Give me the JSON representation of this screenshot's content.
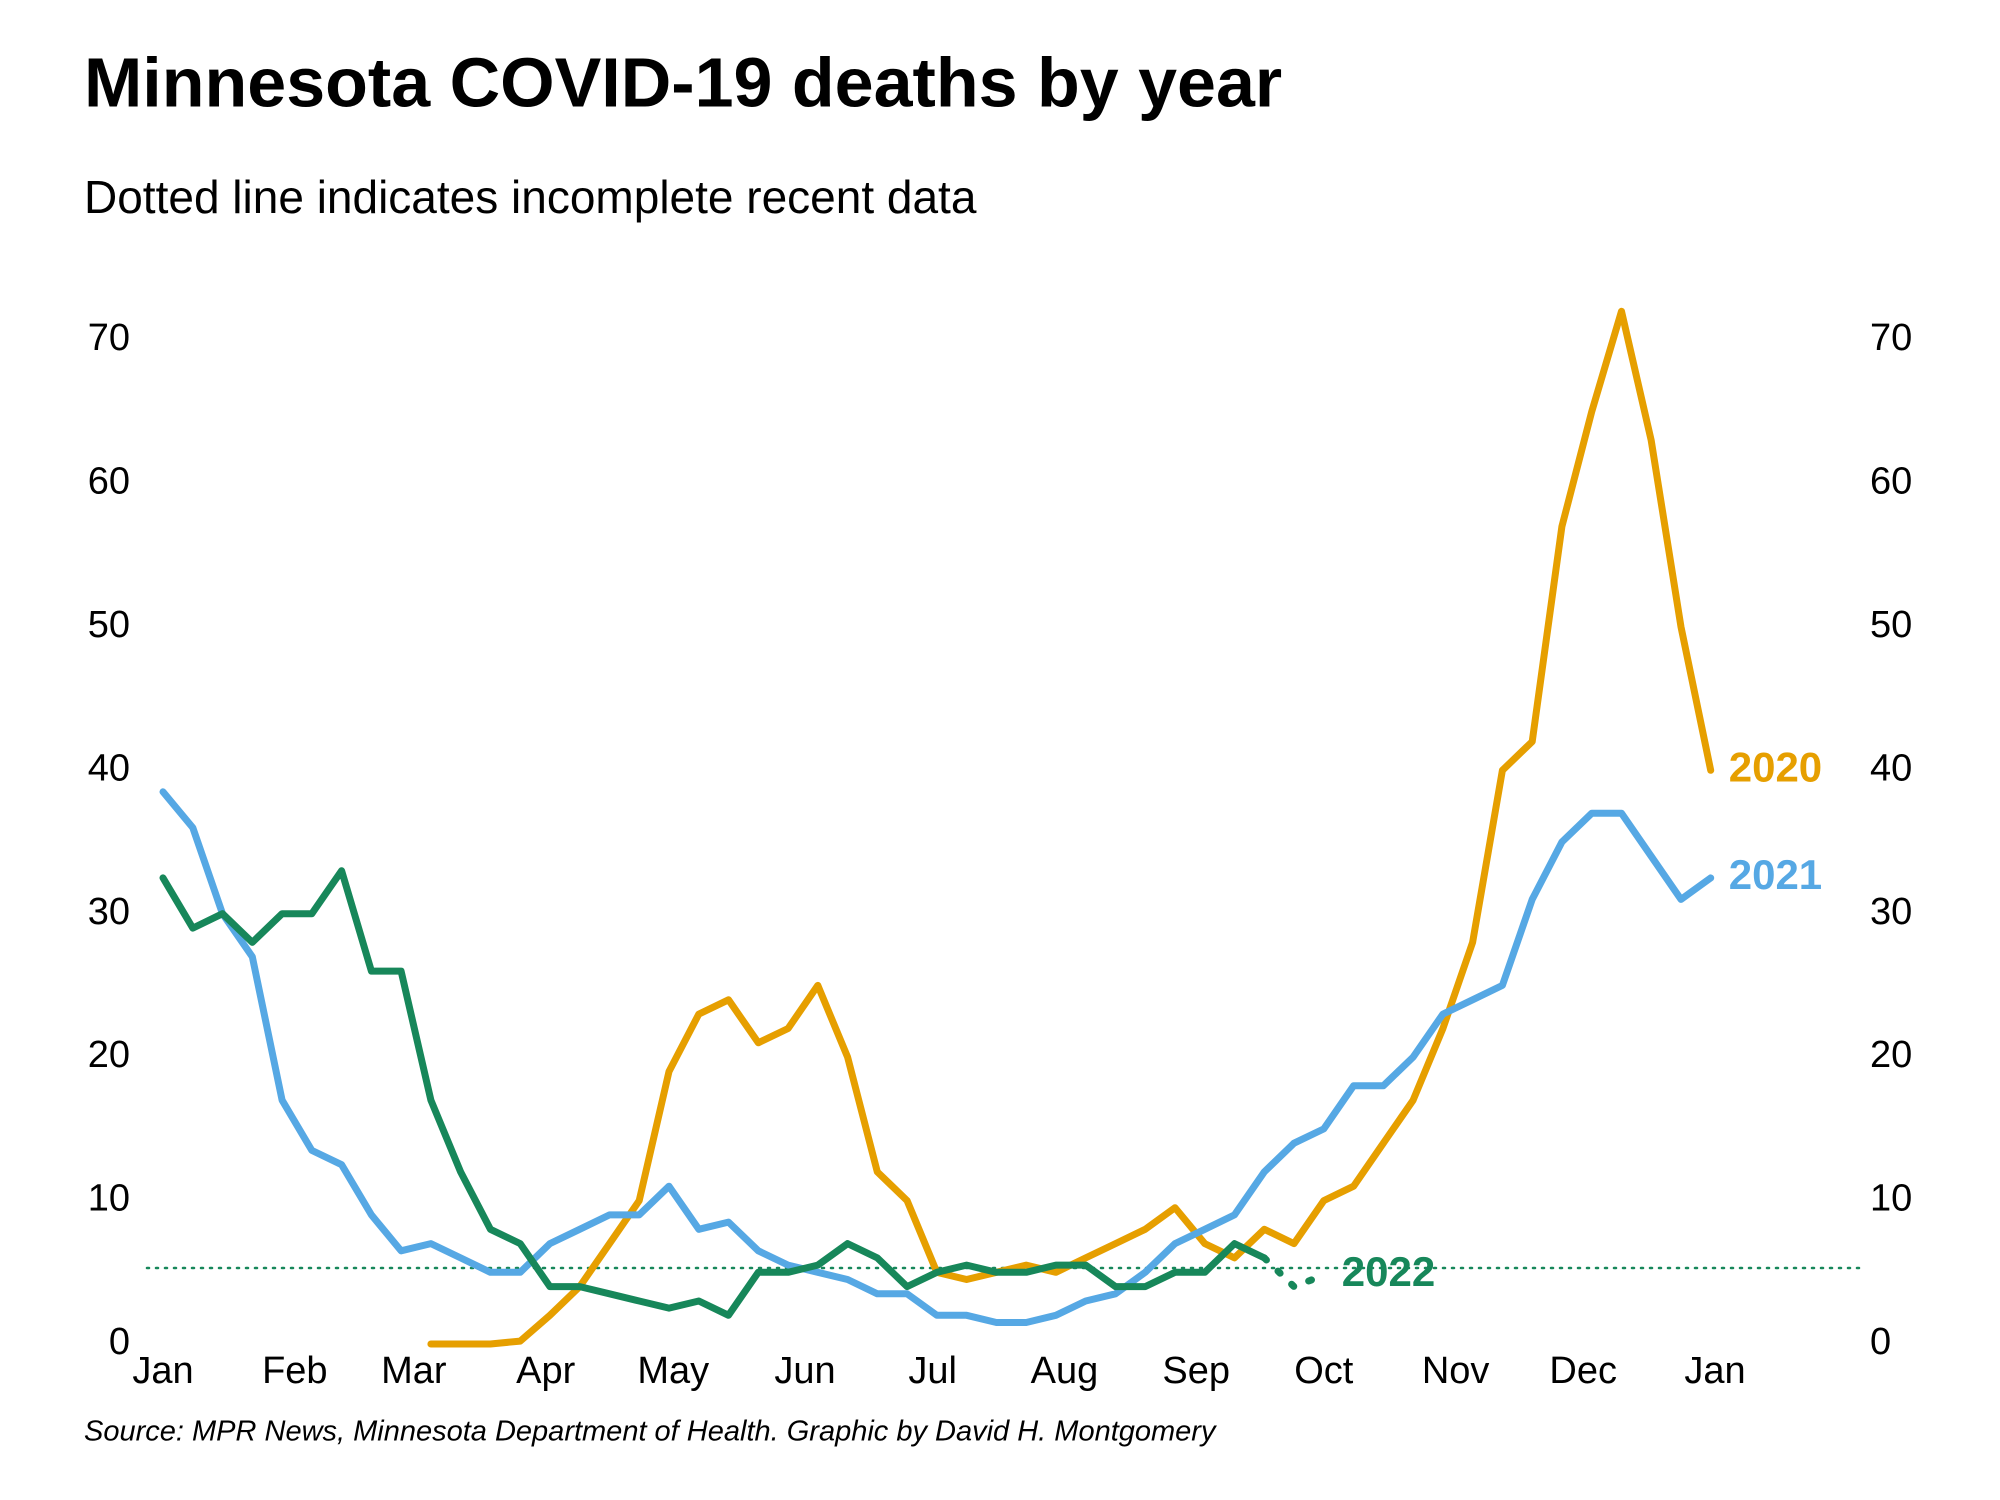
{
  "chart_data": {
    "type": "line",
    "title": "Minnesota COVID-19 deaths by year",
    "subtitle": "Dotted line indicates incomplete recent data",
    "source": "Source: MPR News, Minnesota Department of Health. Graphic by David H. Montgomery",
    "x": [
      0,
      7,
      14,
      21,
      28,
      35,
      42,
      49,
      56,
      63,
      70,
      77,
      84,
      91,
      98,
      105,
      112,
      119,
      126,
      133,
      140,
      147,
      154,
      161,
      168,
      175,
      182,
      189,
      196,
      203,
      210,
      217,
      224,
      231,
      238,
      245,
      252,
      259,
      266,
      273,
      280,
      287,
      294,
      301,
      308,
      315,
      322,
      329,
      336,
      343,
      350,
      357,
      364
    ],
    "xlim": [
      0,
      365
    ],
    "xticks": [
      {
        "value": 0,
        "label": "Jan"
      },
      {
        "value": 31,
        "label": "Feb"
      },
      {
        "value": 59,
        "label": "Mar"
      },
      {
        "value": 90,
        "label": "Apr"
      },
      {
        "value": 120,
        "label": "May"
      },
      {
        "value": 151,
        "label": "Jun"
      },
      {
        "value": 181,
        "label": "Jul"
      },
      {
        "value": 212,
        "label": "Aug"
      },
      {
        "value": 243,
        "label": "Sep"
      },
      {
        "value": 273,
        "label": "Oct"
      },
      {
        "value": 304,
        "label": "Nov"
      },
      {
        "value": 334,
        "label": "Dec"
      },
      {
        "value": 365,
        "label": "Jan"
      }
    ],
    "ylim": [
      0,
      75
    ],
    "yticks": [
      0,
      10,
      20,
      30,
      40,
      50,
      60,
      70
    ],
    "y_axis_both_sides": true,
    "grid": false,
    "reference_line": {
      "value": 5.3,
      "color": "#17875A"
    },
    "series": [
      {
        "name": "2020",
        "color": "#E69F00",
        "values": [
          null,
          null,
          null,
          null,
          null,
          null,
          null,
          null,
          null,
          0,
          0,
          0,
          0.2,
          2,
          4,
          7,
          10,
          19,
          23,
          24,
          21,
          22,
          25,
          20,
          12,
          10,
          5,
          4.5,
          5,
          5.5,
          5,
          6,
          7,
          8,
          9.5,
          7,
          6,
          8,
          7,
          10,
          11,
          14,
          17,
          22,
          28,
          40,
          42,
          57,
          65,
          72,
          63,
          50,
          40
        ]
      },
      {
        "name": "2021",
        "color": "#56A8E4",
        "values": [
          38.5,
          36,
          30,
          27,
          17,
          13.5,
          12.5,
          9,
          6.5,
          7,
          6,
          5,
          5,
          7,
          8,
          9,
          9,
          11,
          8,
          8.5,
          6.5,
          5.5,
          5,
          4.5,
          3.5,
          3.5,
          2,
          2,
          1.5,
          1.5,
          2,
          3,
          3.5,
          5,
          7,
          8,
          9,
          12,
          14,
          15,
          18,
          18,
          20,
          23,
          24,
          25,
          31,
          35,
          37,
          37,
          34,
          31,
          32.5
        ]
      },
      {
        "name": "2022",
        "color": "#17875A",
        "incomplete_from_x": 259,
        "values": [
          32.5,
          29,
          30,
          28,
          30,
          30,
          33,
          26,
          26,
          17,
          12,
          8,
          7,
          4,
          4,
          3.5,
          3,
          2.5,
          3,
          2,
          5,
          5,
          5.5,
          7,
          6,
          4,
          5,
          5.5,
          5,
          5,
          5.5,
          5.5,
          4,
          4,
          5,
          5,
          7,
          6,
          4,
          4.8,
          null,
          null,
          null,
          null,
          null,
          null,
          null,
          null,
          null,
          null,
          null,
          null,
          null
        ]
      }
    ]
  }
}
